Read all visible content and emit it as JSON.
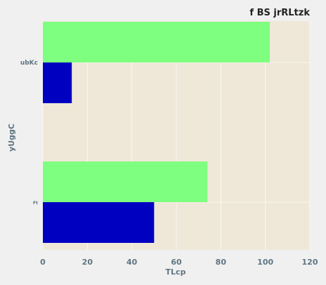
{
  "chart_data": {
    "type": "bar",
    "orientation": "horizontal",
    "title": "f BS jrRLtzk",
    "xlabel": "TLcp",
    "ylabel": "yUggC",
    "categories": [
      "ubKc",
      "Ft"
    ],
    "series": [
      {
        "values": [
          102,
          74
        ],
        "color": "#7fff7f"
      },
      {
        "values": [
          13,
          50
        ],
        "color": "#0000c0"
      }
    ],
    "xlim": [
      0,
      120
    ],
    "xticks": [
      "0",
      "20",
      "40",
      "60",
      "80",
      "100",
      "120"
    ],
    "grid": true,
    "background": "#efe8d8"
  }
}
